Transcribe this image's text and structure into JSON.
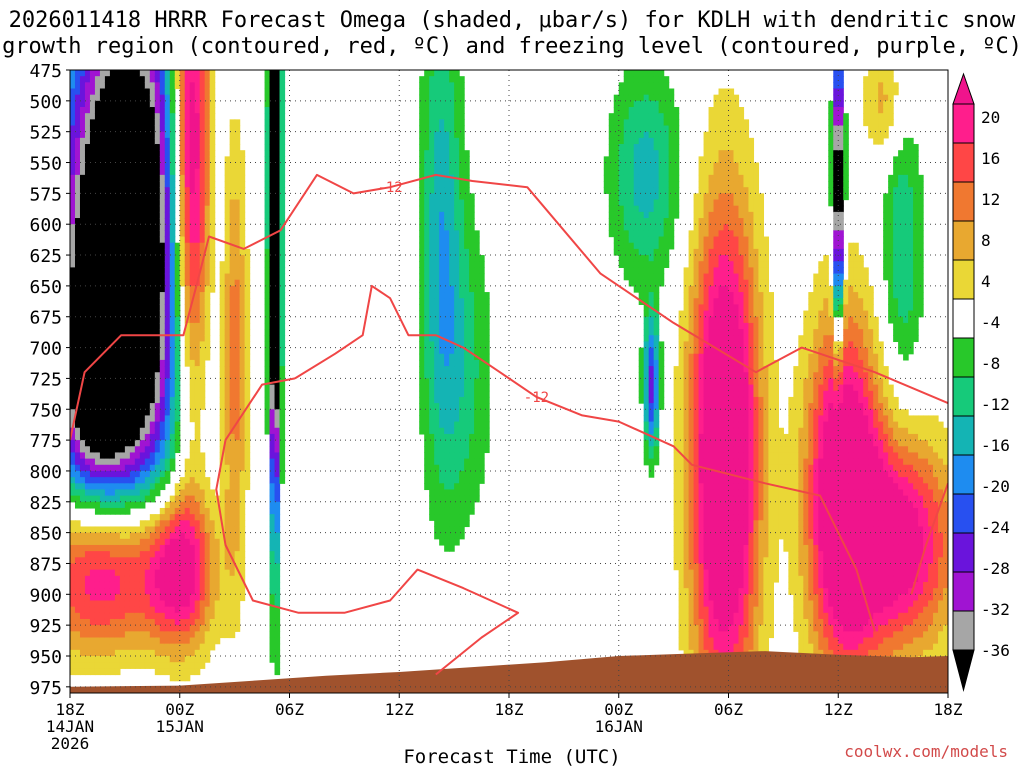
{
  "title_line1": "2026011418 HRRR Forecast Omega (shaded, μbar/s) for KDLH with dendritic snow",
  "title_line2": "growth region (contoured, red, ºC) and freezing level (contoured, purple, ºC)",
  "credit": "coolwx.com/models",
  "chart_data": {
    "type": "heatmap",
    "title": "2026011418 HRRR Forecast Omega (shaded, μbar/s) for KDLH with dendritic snow growth region (contoured, red, ºC) and freezing level (contoured, purple, ºC)",
    "xlabel": "Forecast Time (UTC)",
    "ylabel": "",
    "x_ticks": [
      {
        "hour": 0,
        "lines": [
          "18Z",
          "14JAN",
          "2026"
        ]
      },
      {
        "hour": 6,
        "lines": [
          "00Z",
          "15JAN"
        ]
      },
      {
        "hour": 12,
        "lines": [
          "06Z"
        ]
      },
      {
        "hour": 18,
        "lines": [
          "12Z"
        ]
      },
      {
        "hour": 24,
        "lines": [
          "18Z"
        ]
      },
      {
        "hour": 30,
        "lines": [
          "00Z",
          "16JAN"
        ]
      },
      {
        "hour": 36,
        "lines": [
          "06Z"
        ]
      },
      {
        "hour": 42,
        "lines": [
          "12Z"
        ]
      },
      {
        "hour": 48,
        "lines": [
          "18Z"
        ]
      }
    ],
    "xlim": [
      0,
      48
    ],
    "y_levels_hpa": [
      475,
      500,
      525,
      550,
      575,
      600,
      625,
      650,
      675,
      700,
      725,
      750,
      775,
      800,
      825,
      850,
      875,
      900,
      925,
      950,
      975
    ],
    "ylim": [
      475,
      980
    ],
    "grid": true,
    "colorbar": {
      "labels": [
        "20",
        "16",
        "12",
        "8",
        "4",
        "-4",
        "-8",
        "-12",
        "-16",
        "-20",
        "-24",
        "-28",
        "-32",
        "-36"
      ],
      "bins": [
        {
          "lo": 24,
          "hi": 99,
          "color": "#f0148c"
        },
        {
          "lo": 20,
          "hi": 24,
          "color": "#ff1e8c"
        },
        {
          "lo": 16,
          "hi": 20,
          "color": "#ff4646"
        },
        {
          "lo": 12,
          "hi": 16,
          "color": "#f07830"
        },
        {
          "lo": 8,
          "hi": 12,
          "color": "#e8a830"
        },
        {
          "lo": 4,
          "hi": 8,
          "color": "#ead736"
        },
        {
          "lo": -4,
          "hi": 4,
          "color": "#ffffff"
        },
        {
          "lo": -8,
          "hi": -4,
          "color": "#28c82a"
        },
        {
          "lo": -12,
          "hi": -8,
          "color": "#16ca7a"
        },
        {
          "lo": -16,
          "hi": -12,
          "color": "#14b4b4"
        },
        {
          "lo": -20,
          "hi": -16,
          "color": "#1e8cf0"
        },
        {
          "lo": -24,
          "hi": -20,
          "color": "#2850f0"
        },
        {
          "lo": -28,
          "hi": -24,
          "color": "#6a14dc"
        },
        {
          "lo": -32,
          "hi": -28,
          "color": "#a014d2"
        },
        {
          "lo": -36,
          "hi": -32,
          "color": "#a6a6a6"
        },
        {
          "lo": -99,
          "hi": -36,
          "color": "#000000"
        }
      ]
    },
    "omega_features": [
      {
        "hour": 3.0,
        "p": 620,
        "sx": 2.4,
        "sp": 150,
        "amp": -60
      },
      {
        "hour": 1.2,
        "p": 730,
        "sx": 1.5,
        "sp": 70,
        "amp": -22
      },
      {
        "hour": 6.6,
        "p": 560,
        "sx": 0.8,
        "sp": 140,
        "amp": 42
      },
      {
        "hour": 11.2,
        "p": 560,
        "sx": 0.2,
        "sp": 170,
        "amp": -80
      },
      {
        "hour": 9.0,
        "p": 700,
        "sx": 0.5,
        "sp": 130,
        "amp": 16
      },
      {
        "hour": 2.0,
        "p": 880,
        "sx": 2.4,
        "sp": 50,
        "amp": 34
      },
      {
        "hour": 6.0,
        "p": 880,
        "sx": 1.3,
        "sp": 45,
        "amp": 26
      },
      {
        "hour": 20.3,
        "p": 600,
        "sx": 0.8,
        "sp": 140,
        "amp": -14
      },
      {
        "hour": 21.5,
        "p": 720,
        "sx": 1.2,
        "sp": 90,
        "amp": -9
      },
      {
        "hour": 31.5,
        "p": 560,
        "sx": 1.4,
        "sp": 60,
        "amp": -14
      },
      {
        "hour": 31.8,
        "p": 730,
        "sx": 0.3,
        "sp": 40,
        "amp": -26
      },
      {
        "hour": 35.8,
        "p": 790,
        "sx": 1.3,
        "sp": 140,
        "amp": 40
      },
      {
        "hour": 42.3,
        "p": 820,
        "sx": 1.4,
        "sp": 100,
        "amp": 36
      },
      {
        "hour": 45.5,
        "p": 860,
        "sx": 2.0,
        "sp": 60,
        "amp": 28
      },
      {
        "hour": 42.0,
        "p": 570,
        "sx": 0.2,
        "sp": 80,
        "amp": -50
      },
      {
        "hour": 45.5,
        "p": 620,
        "sx": 0.8,
        "sp": 80,
        "amp": -12
      },
      {
        "hour": 44.5,
        "p": 500,
        "sx": 0.8,
        "sp": 35,
        "amp": 10
      }
    ],
    "contours": [
      {
        "label": "-12",
        "color": "#f04646",
        "points": [
          [
            0.0,
            775
          ],
          [
            0.8,
            720
          ],
          [
            2.8,
            690
          ],
          [
            4.8,
            690
          ],
          [
            6.2,
            690
          ],
          [
            7.0,
            645
          ],
          [
            7.6,
            610
          ],
          [
            9.5,
            620
          ],
          [
            11.5,
            605
          ],
          [
            13.5,
            560
          ],
          [
            15.5,
            575
          ],
          [
            17.5,
            570
          ],
          [
            20.0,
            560
          ],
          [
            22.0,
            565
          ],
          [
            25.0,
            570
          ],
          [
            29.0,
            640
          ],
          [
            33.0,
            680
          ],
          [
            37.5,
            720
          ],
          [
            40.0,
            700
          ],
          [
            44.0,
            720
          ],
          [
            48.0,
            745
          ]
        ]
      },
      {
        "label": "-12",
        "color": "#f04646",
        "points": [
          [
            12.3,
            725
          ],
          [
            14.5,
            705
          ],
          [
            16.0,
            690
          ],
          [
            16.5,
            650
          ],
          [
            17.5,
            660
          ],
          [
            18.5,
            690
          ],
          [
            20.0,
            690
          ],
          [
            21.5,
            700
          ],
          [
            23.5,
            720
          ],
          [
            25.5,
            740
          ],
          [
            28.0,
            755
          ],
          [
            30.0,
            760
          ],
          [
            33.0,
            780
          ],
          [
            34.0,
            795
          ],
          [
            38.0,
            810
          ],
          [
            41.0,
            820
          ],
          [
            43.0,
            880
          ],
          [
            44.0,
            930
          ]
        ]
      },
      {
        "label": "",
        "color": "#f04646",
        "points": [
          [
            12.3,
            725
          ],
          [
            10.5,
            730
          ],
          [
            8.5,
            775
          ],
          [
            8.0,
            815
          ],
          [
            8.5,
            860
          ],
          [
            10.0,
            905
          ],
          [
            12.5,
            915
          ],
          [
            15.0,
            915
          ],
          [
            17.5,
            905
          ],
          [
            19.0,
            880
          ],
          [
            21.5,
            895
          ],
          [
            24.5,
            915
          ],
          [
            22.5,
            935
          ],
          [
            20.0,
            965
          ]
        ]
      },
      {
        "label": "",
        "color": "#f04646",
        "points": [
          [
            48.0,
            810
          ],
          [
            46.8,
            860
          ],
          [
            46.0,
            900
          ]
        ]
      }
    ],
    "terrain_color": "#a0522d",
    "terrain": [
      [
        0,
        975
      ],
      [
        6,
        974
      ],
      [
        10,
        970
      ],
      [
        14,
        966
      ],
      [
        18,
        963
      ],
      [
        22,
        959
      ],
      [
        26,
        955
      ],
      [
        30,
        950
      ],
      [
        34,
        948
      ],
      [
        38,
        946
      ],
      [
        42,
        949
      ],
      [
        46,
        951
      ],
      [
        48,
        950
      ]
    ]
  }
}
